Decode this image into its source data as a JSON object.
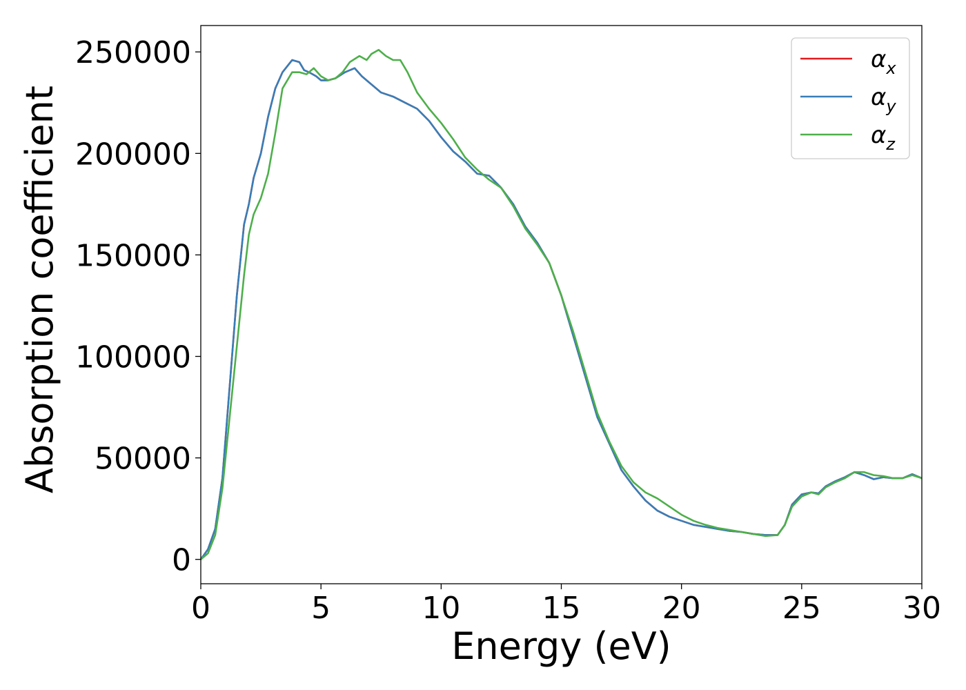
{
  "chart_data": {
    "type": "line",
    "xlabel": "Energy (eV)",
    "ylabel": "Absorption coefficient",
    "xlim": [
      0,
      30
    ],
    "ylim": [
      -12000,
      263000
    ],
    "xticks": [
      0,
      5,
      10,
      15,
      20,
      25,
      30
    ],
    "xtick_labels": [
      "0",
      "5",
      "10",
      "15",
      "20",
      "25",
      "30"
    ],
    "yticks": [
      0,
      50000,
      100000,
      150000,
      200000,
      250000
    ],
    "ytick_labels": [
      "0",
      "50000",
      "100000",
      "150000",
      "200000",
      "250000"
    ],
    "grid": false,
    "legend_position": "top-right",
    "series": [
      {
        "name": "α",
        "subscript": "x",
        "color": "#e41a1c",
        "x": [
          0,
          0.3,
          0.6,
          0.9,
          1.2,
          1.5,
          1.8,
          2.0,
          2.2,
          2.5,
          2.8,
          3.1,
          3.4,
          3.8,
          4.1,
          4.3,
          4.5,
          4.8,
          5.0,
          5.3,
          5.6,
          6.0,
          6.4,
          6.7,
          7.0,
          7.5,
          8.0,
          8.5,
          9.0,
          9.5,
          10.0,
          10.5,
          11.0,
          11.5,
          12.0,
          12.5,
          13.0,
          13.5,
          14.0,
          14.5,
          15.0,
          15.5,
          16.0,
          16.5,
          17.0,
          17.5,
          18.0,
          18.5,
          19.0,
          19.5,
          20.0,
          20.5,
          21.0,
          21.5,
          22.0,
          22.5,
          23.0,
          23.5,
          24.0,
          24.3,
          24.6,
          25.0,
          25.4,
          25.7,
          26.0,
          26.4,
          26.8,
          27.2,
          27.6,
          28.0,
          28.4,
          28.8,
          29.2,
          29.6,
          30.0
        ],
        "y": [
          0,
          5000,
          15000,
          40000,
          85000,
          130000,
          165000,
          175000,
          188000,
          200000,
          218000,
          232000,
          240000,
          246000,
          245000,
          241000,
          240000,
          238000,
          236000,
          236000,
          237000,
          240000,
          242000,
          238000,
          235000,
          230000,
          228000,
          225000,
          222000,
          216000,
          208000,
          201000,
          196000,
          190000,
          189000,
          183000,
          175000,
          164000,
          156000,
          146000,
          130000,
          110000,
          90000,
          70000,
          57000,
          44000,
          36000,
          29000,
          24000,
          21000,
          19000,
          17000,
          16000,
          15000,
          14000,
          13500,
          12500,
          12000,
          12000,
          17000,
          27000,
          32000,
          33000,
          32500,
          36000,
          38500,
          40500,
          43000,
          41500,
          39500,
          40500,
          40000,
          40000,
          42000,
          40000
        ]
      },
      {
        "name": "α",
        "subscript": "y",
        "color": "#377eb8",
        "x": [
          0,
          0.3,
          0.6,
          0.9,
          1.2,
          1.5,
          1.8,
          2.0,
          2.2,
          2.5,
          2.8,
          3.1,
          3.4,
          3.8,
          4.1,
          4.3,
          4.5,
          4.8,
          5.0,
          5.3,
          5.6,
          6.0,
          6.4,
          6.7,
          7.0,
          7.5,
          8.0,
          8.5,
          9.0,
          9.5,
          10.0,
          10.5,
          11.0,
          11.5,
          12.0,
          12.5,
          13.0,
          13.5,
          14.0,
          14.5,
          15.0,
          15.5,
          16.0,
          16.5,
          17.0,
          17.5,
          18.0,
          18.5,
          19.0,
          19.5,
          20.0,
          20.5,
          21.0,
          21.5,
          22.0,
          22.5,
          23.0,
          23.5,
          24.0,
          24.3,
          24.6,
          25.0,
          25.4,
          25.7,
          26.0,
          26.4,
          26.8,
          27.2,
          27.6,
          28.0,
          28.4,
          28.8,
          29.2,
          29.6,
          30.0
        ],
        "y": [
          0,
          5000,
          15000,
          40000,
          85000,
          130000,
          165000,
          175000,
          188000,
          200000,
          218000,
          232000,
          240000,
          246000,
          245000,
          241000,
          240000,
          238000,
          236000,
          236000,
          237000,
          240000,
          242000,
          238000,
          235000,
          230000,
          228000,
          225000,
          222000,
          216000,
          208000,
          201000,
          196000,
          190000,
          189000,
          183000,
          175000,
          164000,
          156000,
          146000,
          130000,
          110000,
          90000,
          70000,
          57000,
          44000,
          36000,
          29000,
          24000,
          21000,
          19000,
          17000,
          16000,
          15000,
          14000,
          13500,
          12500,
          12000,
          12000,
          17000,
          27000,
          32000,
          33000,
          32500,
          36000,
          38500,
          40500,
          43000,
          41500,
          39500,
          40500,
          40000,
          40000,
          42000,
          40000
        ]
      },
      {
        "name": "α",
        "subscript": "z",
        "color": "#4daf4a",
        "x": [
          0,
          0.3,
          0.6,
          0.9,
          1.2,
          1.5,
          1.8,
          2.0,
          2.2,
          2.5,
          2.8,
          3.1,
          3.4,
          3.8,
          4.1,
          4.4,
          4.7,
          5.0,
          5.3,
          5.6,
          5.9,
          6.2,
          6.6,
          6.9,
          7.1,
          7.4,
          7.7,
          8.0,
          8.3,
          8.6,
          9.0,
          9.5,
          10.0,
          10.5,
          11.0,
          11.5,
          12.0,
          12.5,
          13.0,
          13.5,
          14.0,
          14.5,
          15.0,
          15.5,
          16.0,
          16.5,
          17.0,
          17.5,
          18.0,
          18.5,
          19.0,
          19.5,
          20.0,
          20.5,
          21.0,
          21.5,
          22.0,
          22.5,
          23.0,
          23.5,
          24.0,
          24.3,
          24.6,
          25.0,
          25.4,
          25.7,
          26.0,
          26.4,
          26.8,
          27.2,
          27.6,
          28.0,
          28.4,
          28.8,
          29.2,
          29.6,
          30.0
        ],
        "y": [
          0,
          3000,
          12000,
          35000,
          70000,
          105000,
          140000,
          160000,
          170000,
          178000,
          190000,
          210000,
          232000,
          240000,
          240000,
          239000,
          242000,
          238000,
          236000,
          237000,
          240000,
          245000,
          248000,
          246000,
          249000,
          251000,
          248000,
          246000,
          246000,
          240000,
          230000,
          222000,
          215000,
          207000,
          198000,
          192000,
          187000,
          183000,
          174000,
          163000,
          155000,
          146000,
          130000,
          112000,
          92000,
          72000,
          58000,
          46000,
          38000,
          33000,
          30000,
          26000,
          22000,
          19000,
          17000,
          15500,
          14500,
          13500,
          12500,
          11500,
          12000,
          17000,
          26000,
          31000,
          33000,
          32000,
          35500,
          38000,
          40000,
          43000,
          43000,
          41500,
          41000,
          40000,
          40000,
          41500,
          40000
        ]
      }
    ]
  }
}
